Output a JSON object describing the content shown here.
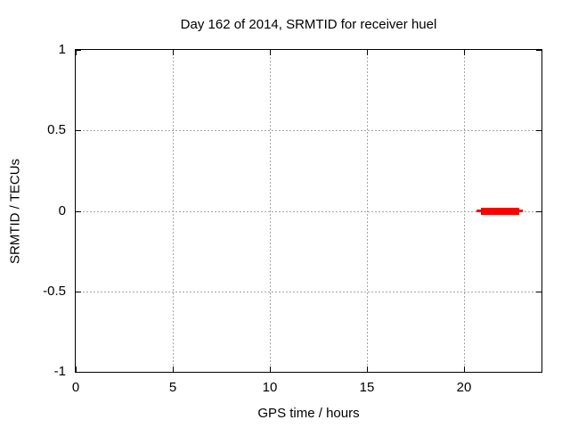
{
  "chart_data": {
    "type": "line",
    "title": "Day 162 of 2014, SRMTID for receiver huel",
    "xlabel": "GPS time / hours",
    "ylabel": "SRMTID / TECUs",
    "xlim": [
      0,
      24
    ],
    "ylim": [
      -1,
      1
    ],
    "x_ticks": [
      0,
      5,
      10,
      15,
      20
    ],
    "x_tick_labels": [
      "0",
      "5",
      "10",
      "15",
      "20"
    ],
    "y_ticks": [
      -1,
      -0.5,
      0,
      0.5,
      1
    ],
    "y_tick_labels": [
      "-1",
      "-0.5",
      "0",
      "0.5",
      "1"
    ],
    "grid": true,
    "grid_style": "dashed",
    "legend_position": "none",
    "series": [
      {
        "name": "SRMTID",
        "color": "#ff0000",
        "y_value": 0.0,
        "x_start": 20.7,
        "x_end": 23.0,
        "segments": [
          {
            "x0": 20.66,
            "x1": 23.05,
            "y": 0.0,
            "thickness_px": 3
          },
          {
            "x0": 20.9,
            "x1": 22.86,
            "y": 0.0,
            "thickness_px": 8
          }
        ]
      }
    ],
    "colors": {
      "axis": "#000000",
      "grid": "#a6a6a6",
      "background": "#ffffff",
      "series": "#ff0000"
    }
  }
}
